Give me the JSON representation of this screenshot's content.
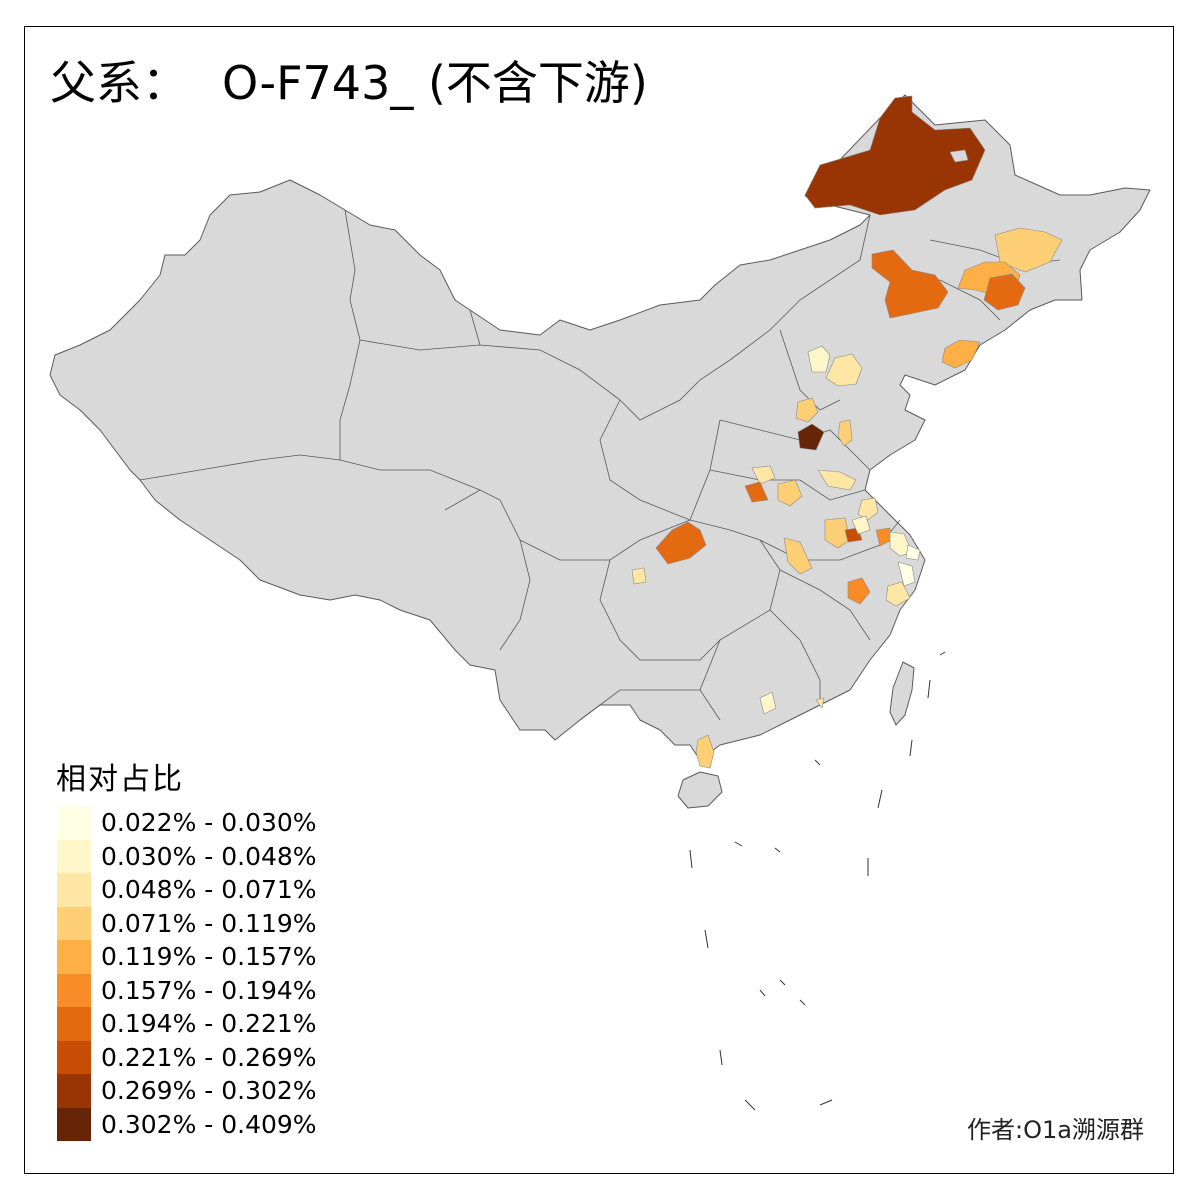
{
  "title": {
    "prefix": "父系：",
    "haplogroup": "O-F743_ (不含下游)"
  },
  "legend": {
    "title": "相对占比",
    "items": [
      {
        "label": "0.022% - 0.030%",
        "color": "#FFFFE5"
      },
      {
        "label": "0.030% - 0.048%",
        "color": "#FFF7C9"
      },
      {
        "label": "0.048% - 0.071%",
        "color": "#FEE6A4"
      },
      {
        "label": "0.071% - 0.119%",
        "color": "#FECF74"
      },
      {
        "label": "0.119% - 0.157%",
        "color": "#FEAF45"
      },
      {
        "label": "0.157% - 0.194%",
        "color": "#F88C26"
      },
      {
        "label": "0.194% - 0.221%",
        "color": "#E46A11"
      },
      {
        "label": "0.221% - 0.269%",
        "color": "#C74E04"
      },
      {
        "label": "0.269% - 0.302%",
        "color": "#993404"
      },
      {
        "label": "0.302% - 0.409%",
        "color": "#662506"
      }
    ]
  },
  "credit": "作者:O1a溯源群",
  "colors": {
    "land": "#D9D9D9",
    "border": "#5A5A5A",
    "background": "#FFFFFF"
  }
}
